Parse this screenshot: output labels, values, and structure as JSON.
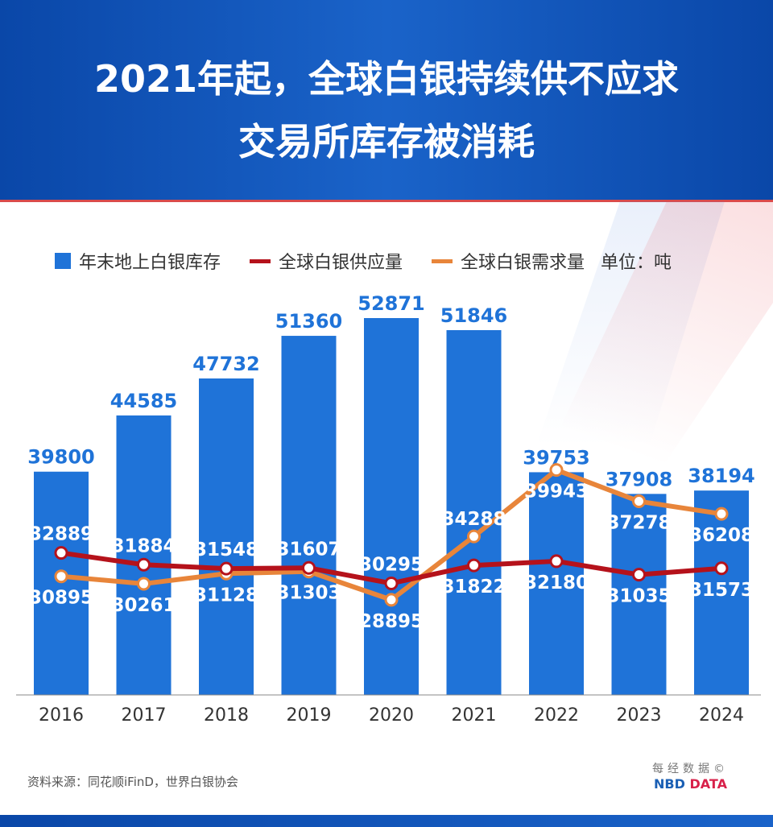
{
  "header": {
    "title_line1": "2021年起，全球白银持续供不应求",
    "title_line2": "交易所库存被消耗"
  },
  "legend": {
    "unit": "单位：吨"
  },
  "chart_data": {
    "type": "bar+line",
    "categories": [
      "2016",
      "2017",
      "2018",
      "2019",
      "2020",
      "2021",
      "2022",
      "2023",
      "2024"
    ],
    "series": [
      {
        "name": "年末地上白银库存",
        "type": "bar",
        "color": "#1f73d8",
        "values": [
          39800,
          44585,
          47732,
          51360,
          52871,
          51846,
          39753,
          37908,
          38194
        ]
      },
      {
        "name": "全球白银供应量",
        "type": "line",
        "color": "#b5121b",
        "values": [
          32889,
          31884,
          31548,
          31607,
          30295,
          31822,
          32180,
          31035,
          31573
        ]
      },
      {
        "name": "全球白银需求量",
        "type": "line",
        "color": "#e8853a",
        "values": [
          30895,
          30261,
          31128,
          31303,
          28895,
          34288,
          39943,
          37278,
          36208
        ]
      }
    ],
    "ylim": [
      20800,
      55000
    ],
    "grid": false,
    "legend_position": "top"
  },
  "source": "资料来源：同花顺iFinD，世界白银协会",
  "logo": {
    "cn": "每经数据©",
    "en1": "NBD",
    "en2": "DATA"
  }
}
